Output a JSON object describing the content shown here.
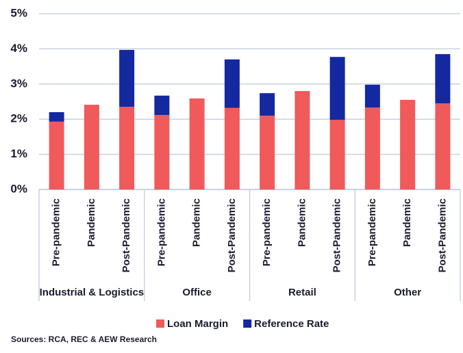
{
  "chart_data": {
    "type": "bar",
    "stacked": true,
    "categories": [
      "Pre-pandemic",
      "Pandemic",
      "Post-Pandemic",
      "Pre-pandemic",
      "Pandemic",
      "Post-Pandemic",
      "Pre-pandemic",
      "Pandemic",
      "Post-Pandemic",
      "Pre-pandemic",
      "Pandemic",
      "Post-Pandemic"
    ],
    "groups": [
      "Industrial & Logistics",
      "Office",
      "Retail",
      "Other"
    ],
    "series": [
      {
        "name": "Loan Margin",
        "color": "#f05a5a",
        "values": [
          1.93,
          2.41,
          2.35,
          2.12,
          2.59,
          2.32,
          2.1,
          2.8,
          1.98,
          2.33,
          2.55,
          2.45
        ]
      },
      {
        "name": "Reference Rate",
        "color": "#1428a0",
        "values": [
          0.27,
          null,
          1.62,
          0.55,
          null,
          1.38,
          0.64,
          null,
          1.79,
          0.65,
          null,
          1.4
        ]
      }
    ],
    "ylim": [
      0,
      5
    ],
    "yticks": [
      {
        "value": 0,
        "label": "0%"
      },
      {
        "value": 1,
        "label": "1%"
      },
      {
        "value": 2,
        "label": "2%"
      },
      {
        "value": 3,
        "label": "3%"
      },
      {
        "value": 4,
        "label": "4%"
      },
      {
        "value": 5,
        "label": "5%"
      }
    ],
    "grid": true,
    "legend": "bottom",
    "source": "Sources: RCA, REC & AEW Research"
  }
}
